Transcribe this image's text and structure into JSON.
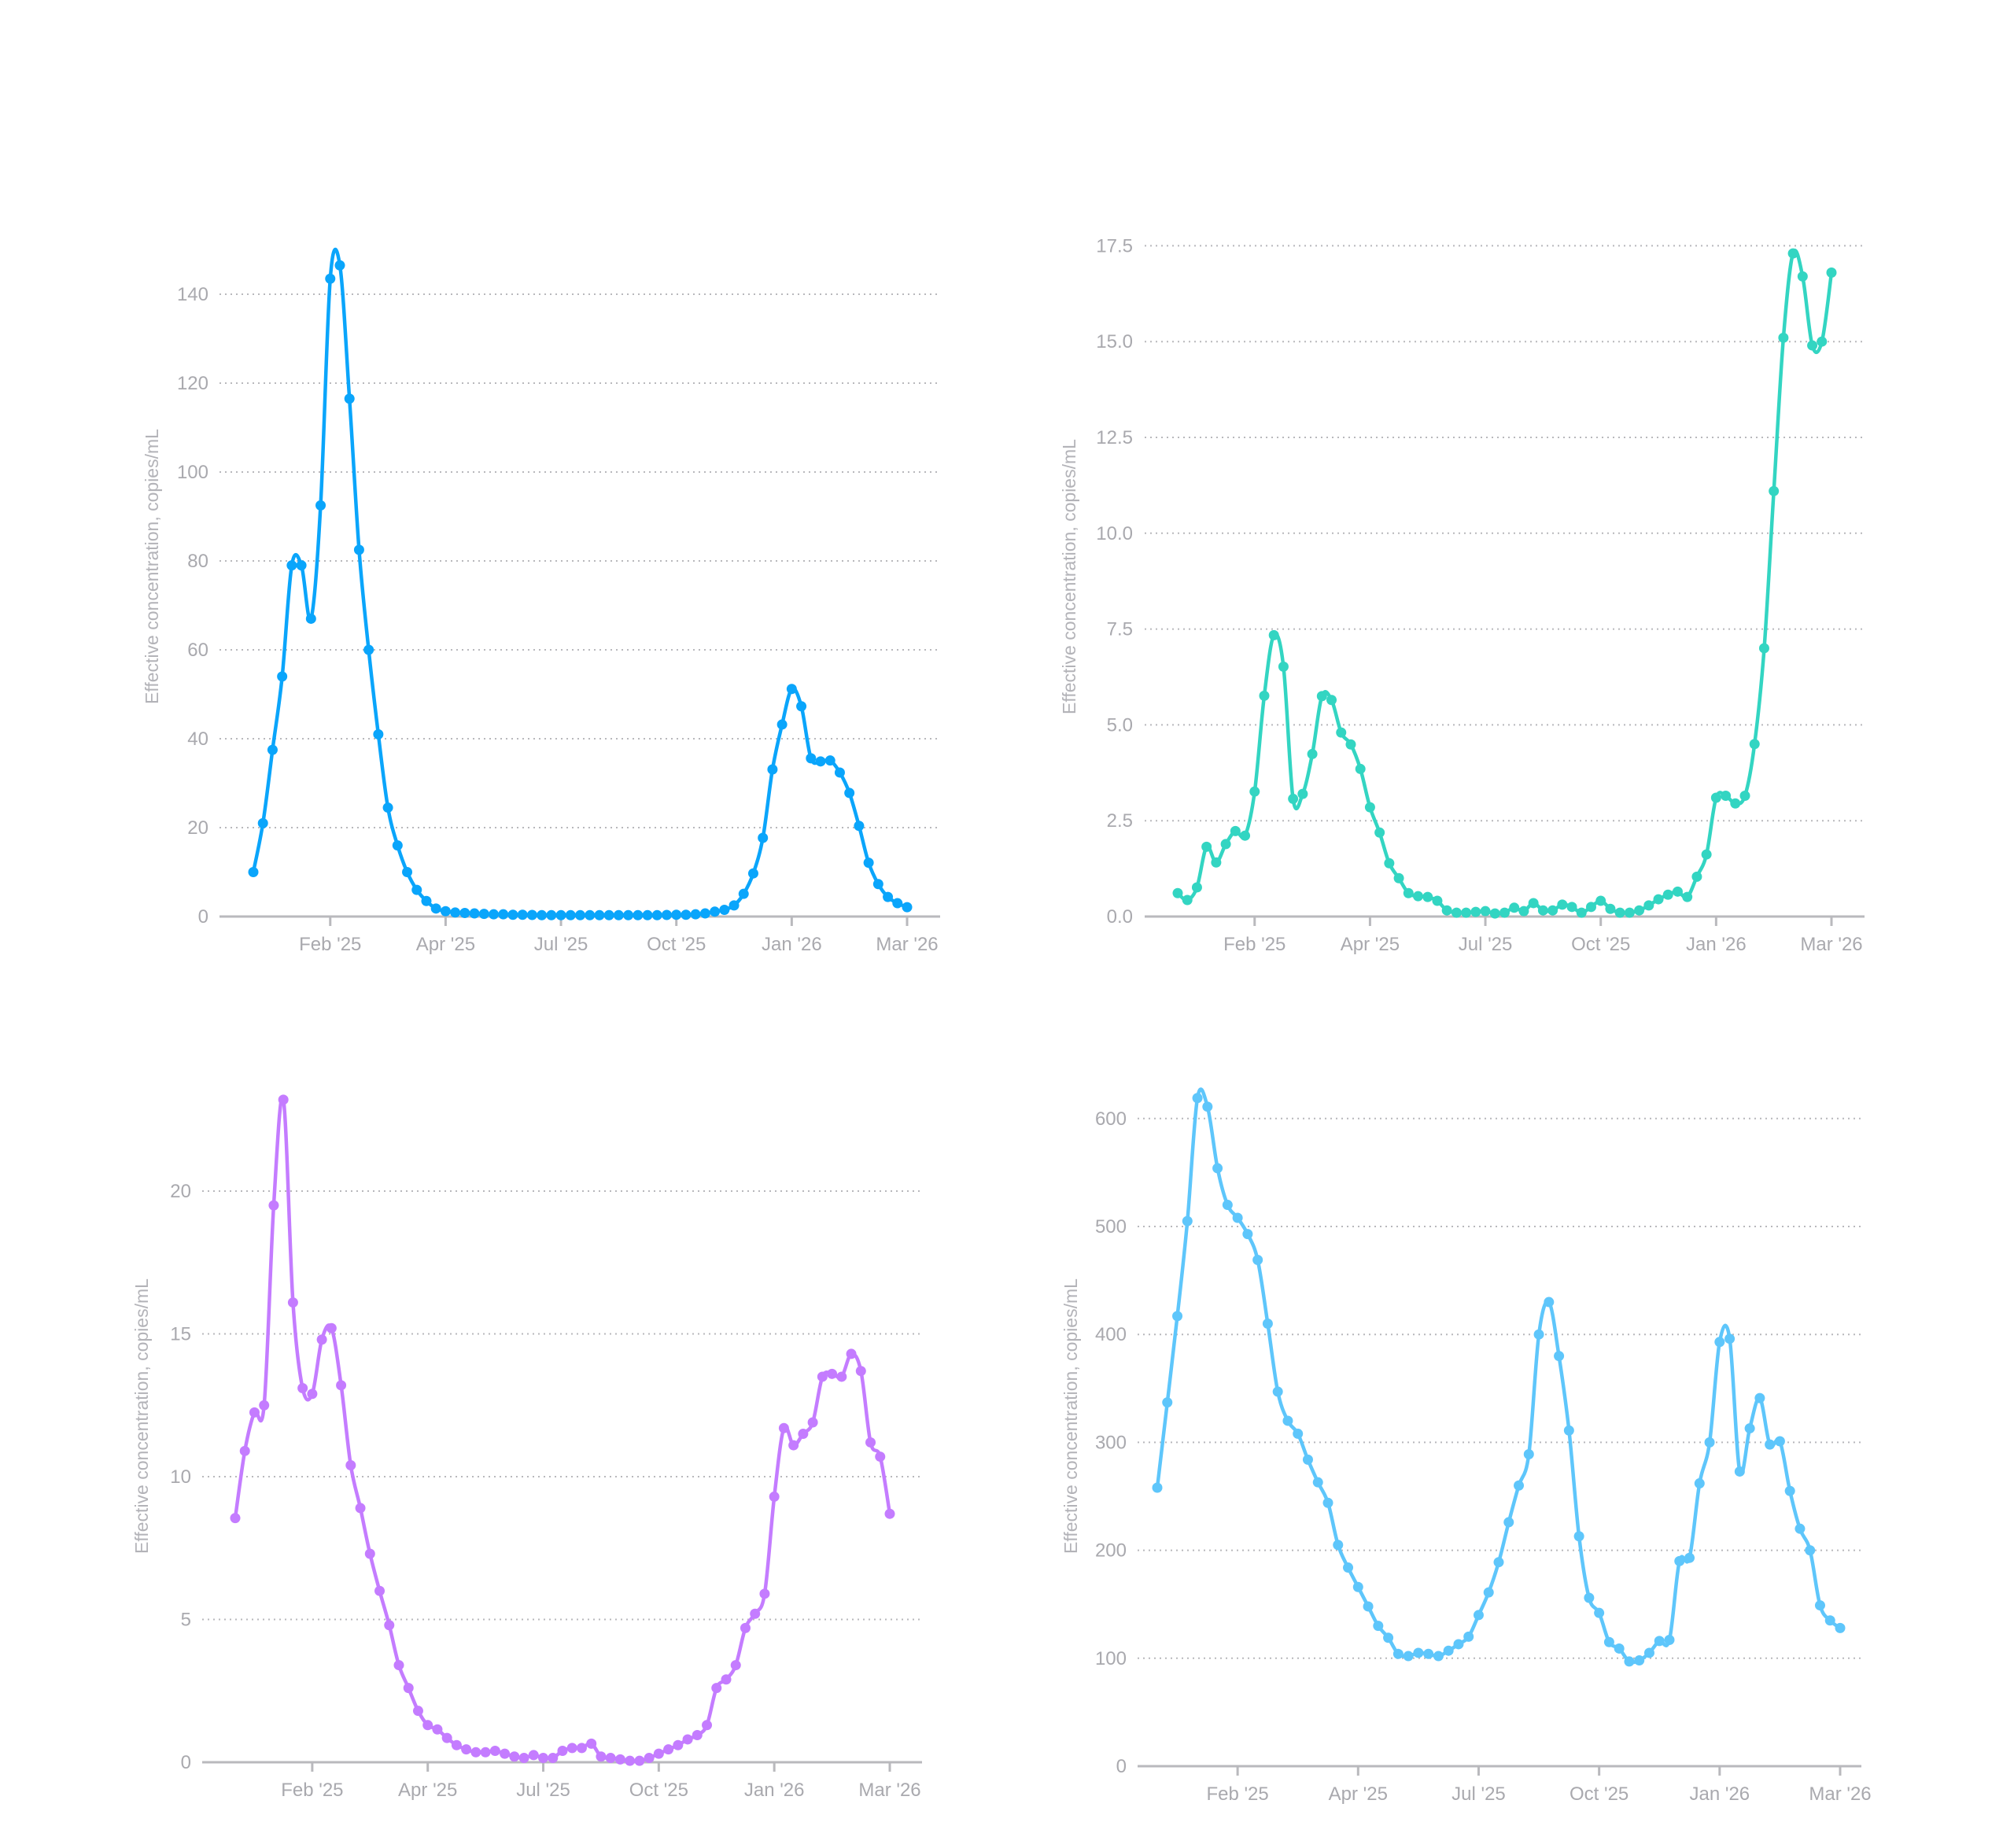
{
  "colors": {
    "text": "#a9a9ae",
    "axis": "#b9b9bd"
  },
  "chart_data": [
    {
      "type": "line",
      "title": "",
      "xlabel": "",
      "ylabel": "Effective concentration, copies/mL",
      "color": "#0aa5fb",
      "x_tick_labels": [
        "Feb '25",
        "Apr '25",
        "Jul '25",
        "Oct '25",
        "Jan '26",
        "Mar '26"
      ],
      "x_tick_index": [
        8,
        20,
        32,
        44,
        56,
        68
      ],
      "y_ticks": [
        0,
        20,
        40,
        60,
        80,
        100,
        120,
        140
      ],
      "y_tick_labels": [
        "0",
        "20",
        "40",
        "60",
        "80",
        "100",
        "120",
        "140"
      ],
      "ylim": [
        0,
        150
      ],
      "grid": true,
      "values": [
        10,
        21,
        37.5,
        54,
        79,
        79,
        67,
        92.5,
        143.5,
        146.5,
        116.5,
        82.5,
        60,
        41,
        24.5,
        16,
        10,
        6,
        3.5,
        1.8,
        1.2,
        0.9,
        0.8,
        0.7,
        0.6,
        0.5,
        0.5,
        0.4,
        0.4,
        0.35,
        0.3,
        0.3,
        0.3,
        0.3,
        0.3,
        0.3,
        0.3,
        0.3,
        0.3,
        0.3,
        0.3,
        0.3,
        0.3,
        0.35,
        0.4,
        0.4,
        0.5,
        0.7,
        1.1,
        1.5,
        2.5,
        5.1,
        9.7,
        17.7,
        33.1,
        43.2,
        51.2,
        47.3,
        35.6,
        34.9,
        35.1,
        32.4,
        27.8,
        20.4,
        12.1,
        7.3,
        4.4,
        3.0,
        2.1
      ]
    },
    {
      "type": "line",
      "title": "",
      "xlabel": "",
      "ylabel": "Effective concentration, copies/mL",
      "color": "#33d5c2",
      "x_tick_labels": [
        "Feb '25",
        "Apr '25",
        "Jul '25",
        "Oct '25",
        "Jan '26",
        "Mar '26"
      ],
      "x_tick_index": [
        8,
        20,
        32,
        44,
        56,
        68
      ],
      "y_ticks": [
        0,
        2.5,
        5,
        7.5,
        10,
        12.5,
        15,
        17.5
      ],
      "y_tick_labels": [
        "0.0",
        "2.5",
        "5.0",
        "7.5",
        "10.0",
        "12.5",
        "15.0",
        "17.5"
      ],
      "ylim": [
        0,
        17.5
      ],
      "grid": true,
      "values": [
        0.61,
        0.43,
        0.76,
        1.82,
        1.41,
        1.89,
        2.23,
        2.11,
        3.26,
        5.76,
        7.34,
        6.52,
        3.07,
        3.2,
        4.24,
        5.75,
        5.65,
        4.8,
        4.49,
        3.85,
        2.85,
        2.19,
        1.39,
        1.0,
        0.61,
        0.53,
        0.51,
        0.41,
        0.16,
        0.1,
        0.1,
        0.12,
        0.14,
        0.08,
        0.1,
        0.23,
        0.14,
        0.35,
        0.16,
        0.16,
        0.31,
        0.25,
        0.1,
        0.25,
        0.41,
        0.2,
        0.1,
        0.1,
        0.16,
        0.29,
        0.45,
        0.57,
        0.65,
        0.51,
        1.04,
        1.62,
        3.1,
        3.15,
        2.95,
        3.15,
        4.5,
        7.0,
        11.1,
        15.1,
        17.3,
        16.7,
        14.9,
        15.0,
        16.8
      ]
    },
    {
      "type": "line",
      "title": "",
      "xlabel": "",
      "ylabel": "Effective concentration, copies/mL",
      "color": "#c47cff",
      "x_tick_labels": [
        "Feb '25",
        "Apr '25",
        "Jul '25",
        "Oct '25",
        "Jan '26",
        "Mar '26"
      ],
      "x_tick_index": [
        8,
        20,
        32,
        44,
        56,
        68
      ],
      "y_ticks": [
        0,
        5,
        10,
        15,
        20
      ],
      "y_tick_labels": [
        "0",
        "5",
        "10",
        "15",
        "20"
      ],
      "ylim": [
        0,
        24
      ],
      "grid": true,
      "values": [
        8.55,
        10.9,
        12.25,
        12.5,
        19.5,
        23.2,
        16.1,
        13.1,
        12.9,
        14.8,
        15.2,
        13.2,
        10.4,
        8.9,
        7.3,
        6.0,
        4.8,
        3.4,
        2.6,
        1.8,
        1.3,
        1.15,
        0.85,
        0.6,
        0.45,
        0.35,
        0.35,
        0.4,
        0.3,
        0.2,
        0.15,
        0.25,
        0.15,
        0.15,
        0.4,
        0.5,
        0.5,
        0.65,
        0.2,
        0.15,
        0.1,
        0.05,
        0.05,
        0.15,
        0.3,
        0.45,
        0.6,
        0.8,
        0.95,
        1.3,
        2.6,
        2.9,
        3.4,
        4.7,
        5.2,
        5.9,
        9.3,
        11.7,
        11.1,
        11.5,
        11.9,
        13.5,
        13.6,
        13.5,
        14.3,
        13.7,
        11.2,
        10.7,
        8.7
      ]
    },
    {
      "type": "line",
      "title": "",
      "xlabel": "",
      "ylabel": "Effective concentration, copies/mL",
      "color": "#5ec6fb",
      "x_tick_labels": [
        "Feb '25",
        "Apr '25",
        "Jul '25",
        "Oct '25",
        "Jan '26",
        "Mar '26"
      ],
      "x_tick_index": [
        8,
        20,
        32,
        44,
        56,
        68
      ],
      "y_ticks": [
        0,
        100,
        200,
        300,
        400,
        500,
        600
      ],
      "y_tick_labels": [
        "0",
        "100",
        "200",
        "300",
        "400",
        "500",
        "600"
      ],
      "ylim": [
        0,
        640
      ],
      "grid": true,
      "values": [
        258,
        337,
        417,
        505,
        619,
        611,
        554,
        520,
        508,
        493,
        469,
        410,
        347,
        320,
        308,
        284,
        263,
        244,
        205,
        184,
        166,
        148,
        130,
        119,
        104,
        102,
        105,
        104,
        102,
        107,
        113,
        120,
        140,
        161,
        189,
        226,
        260,
        289,
        400,
        430,
        380,
        311,
        213,
        156,
        142,
        115,
        109,
        97,
        98,
        105,
        116,
        117,
        190,
        193,
        262,
        300,
        393,
        396,
        273,
        313,
        341,
        298,
        301,
        255,
        220,
        200,
        149,
        135,
        128
      ]
    }
  ]
}
